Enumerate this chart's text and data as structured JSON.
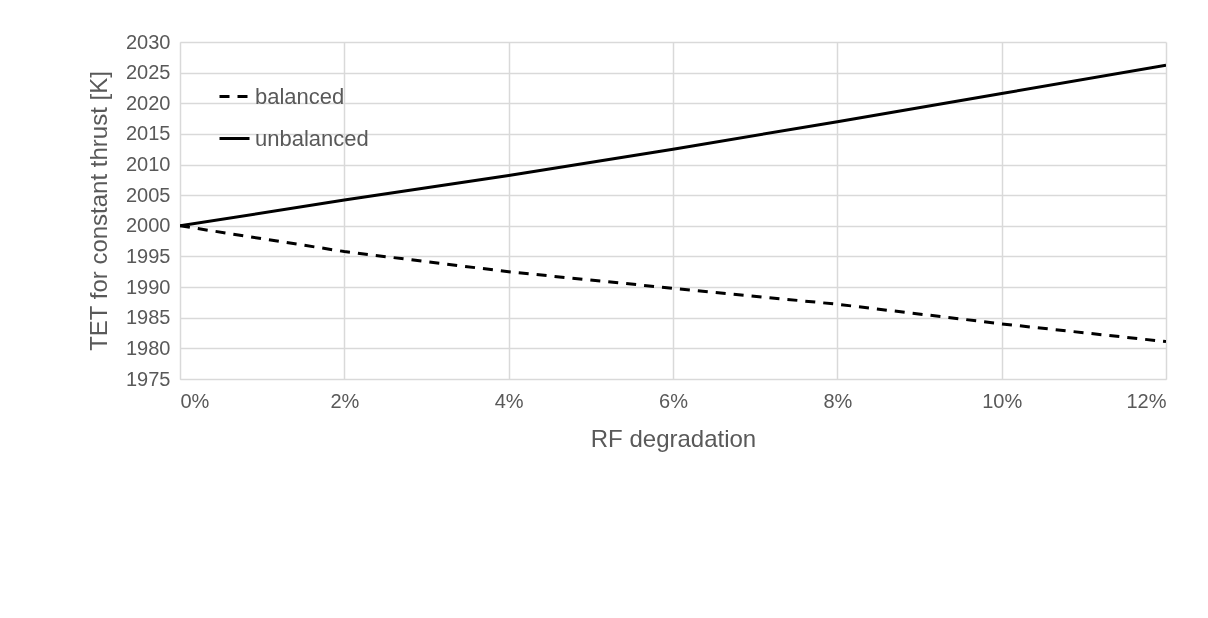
{
  "chart_data": {
    "type": "line",
    "xlabel": "RF degradation",
    "ylabel": "TET for constant  thrust [K]",
    "x": [
      0,
      2,
      4,
      6,
      8,
      10,
      12
    ],
    "series": [
      {
        "name": "balanced",
        "color": "#000000",
        "line_style": "dashed",
        "values": [
          2000,
          1995.8,
          1992.5,
          1989.8,
          1987.2,
          1984,
          1981.1
        ]
      },
      {
        "name": "unbalanced",
        "color": "#000000",
        "line_style": "solid",
        "values": [
          2000,
          2004.2,
          2008.2,
          2012.5,
          2017,
          2021.6,
          2026.2
        ]
      }
    ],
    "xlim": [
      0,
      12
    ],
    "xticks": [
      {
        "value": 0,
        "label": "0%"
      },
      {
        "value": 2,
        "label": "2%"
      },
      {
        "value": 4,
        "label": "4%"
      },
      {
        "value": 6,
        "label": "6%"
      },
      {
        "value": 8,
        "label": "8%"
      },
      {
        "value": 10,
        "label": "10%"
      },
      {
        "value": 12,
        "label": "12%"
      }
    ],
    "ylim": [
      1975,
      2030
    ],
    "yticks": [
      1975,
      1980,
      1985,
      1990,
      1995,
      2000,
      2005,
      2010,
      2015,
      2020,
      2025,
      2030
    ],
    "grid": true,
    "legend": "top left",
    "marker": "none"
  }
}
